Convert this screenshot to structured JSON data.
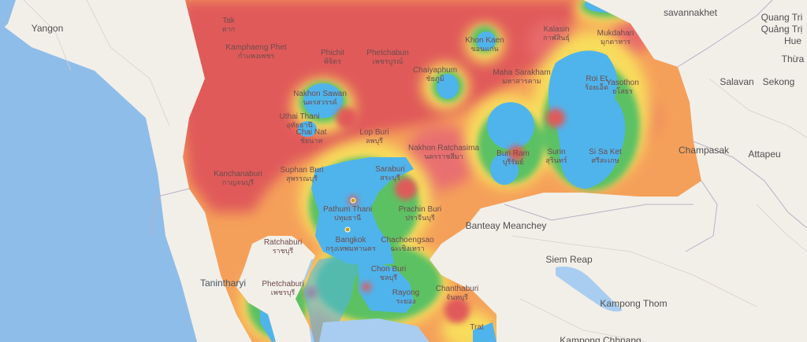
{
  "map": {
    "provinces": [
      {
        "name": "Tak",
        "thai": "ตาก"
      },
      {
        "name": "Kamphaeng Phet",
        "thai": "กำแพงเพชร"
      },
      {
        "name": "Phichit",
        "thai": "พิจิตร"
      },
      {
        "name": "Phetchabun",
        "thai": "เพชรบูรณ์"
      },
      {
        "name": "Khon Kaen",
        "thai": "ขอนแก่น"
      },
      {
        "name": "Kalasin",
        "thai": "กาฬสินธุ์"
      },
      {
        "name": "Mukdahan",
        "thai": "มุกดาหาร"
      },
      {
        "name": "Chaiyaphum",
        "thai": "ชัยภูมิ"
      },
      {
        "name": "Maha Sarakham",
        "thai": "มหาสารคาม"
      },
      {
        "name": "Nakhon Sawan",
        "thai": "นครสวรรค์"
      },
      {
        "name": "Roi Et",
        "thai": "ร้อยเอ็ด"
      },
      {
        "name": "Yasothon",
        "thai": "ยโสธร"
      },
      {
        "name": "Uthai Thani",
        "thai": "อุทัยธานี"
      },
      {
        "name": "Chai Nat",
        "thai": "ชัยนาท"
      },
      {
        "name": "Lop Buri",
        "thai": "ลพบุรี"
      },
      {
        "name": "Nakhon Ratchasima",
        "thai": "นครราชสีมา"
      },
      {
        "name": "Buri Ram",
        "thai": "บุรีรัมย์"
      },
      {
        "name": "Surin",
        "thai": "สุรินทร์"
      },
      {
        "name": "Si Sa Ket",
        "thai": "ศรีสะเกษ"
      },
      {
        "name": "Kanchanaburi",
        "thai": "กาญจนบุรี"
      },
      {
        "name": "Suphan Buri",
        "thai": "สุพรรณบุรี"
      },
      {
        "name": "Saraburi",
        "thai": "สระบุรี"
      },
      {
        "name": "Pathum Thani",
        "thai": "ปทุมธานี"
      },
      {
        "name": "Prachin Buri",
        "thai": "ปราจีนบุรี"
      },
      {
        "name": "Ratchaburi",
        "thai": "ราชบุรี"
      },
      {
        "name": "Bangkok",
        "thai": "กรุงเทพมหานคร"
      },
      {
        "name": "Chachoengsao",
        "thai": "ฉะเชิงเทรา"
      },
      {
        "name": "Chon Buri",
        "thai": "ชลบุรี"
      },
      {
        "name": "Phetchaburi",
        "thai": "เพชรบุรี"
      },
      {
        "name": "Rayong",
        "thai": "ระยอง"
      },
      {
        "name": "Chanthaburi",
        "thai": "จันทบุรี"
      },
      {
        "name": "Trat",
        "thai": ""
      }
    ],
    "places": [
      "Yangon",
      "savannakhet",
      "Quang Tri",
      "Quảng Trị",
      "Hue",
      "Thừa",
      "Salavan",
      "Sekong",
      "Champasak",
      "Attapeu",
      "Banteay Meanchey",
      "Siem Reap",
      "Kampong Thom",
      "Kampong Chhnang",
      "Tanintharyi"
    ],
    "colors": {
      "land": "#f2efe9",
      "water": "#a9cdf0",
      "sea_west": "#8fbde9",
      "heat_red": "#e05a5a",
      "heat_orange": "#f5a05a",
      "heat_yellow": "#f8dc5c",
      "heat_green": "#5cc163",
      "heat_blue": "#4fb4ec"
    }
  }
}
